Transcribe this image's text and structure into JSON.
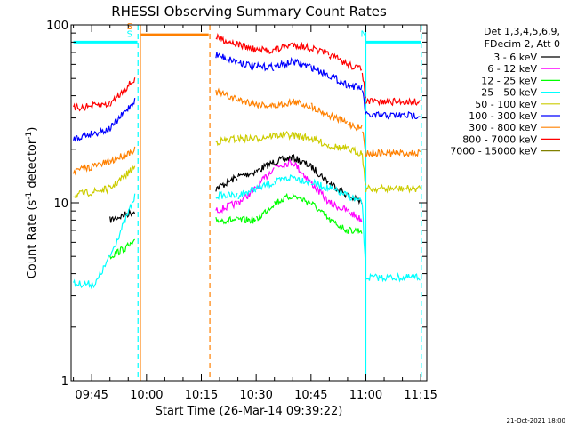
{
  "chart_data": {
    "type": "line",
    "title": "RHESSI Observing Summary Count Rates",
    "xlabel": "Start Time (26-Mar-14 09:39:22)",
    "ylabel_main": "Count Rate (s",
    "ylabel_sup1": "-1",
    "ylabel_mid": " detector",
    "ylabel_sup2": "-1",
    "ylabel_end": ")",
    "yscale": "log",
    "ylim": [
      1,
      100
    ],
    "y_ticks": [
      {
        "label": "1",
        "value": 1
      },
      {
        "label": "10",
        "value": 10
      },
      {
        "label": "100",
        "value": 100
      }
    ],
    "x_range_min": [
      9.656,
      11.278
    ],
    "x_ticks": [
      {
        "label": "09:45",
        "t": "09:45"
      },
      {
        "label": "10:00",
        "t": "10:00"
      },
      {
        "label": "10:15",
        "t": "10:15"
      },
      {
        "label": "10:30",
        "t": "10:30"
      },
      {
        "label": "10:45",
        "t": "10:45"
      },
      {
        "label": "11:00",
        "t": "11:00"
      },
      {
        "label": "11:15",
        "t": "11:15"
      }
    ],
    "legend_header": [
      "Det 1,3,4,5,6,9,",
      "FDecim 2, Att 0"
    ],
    "legend_position": "right",
    "series": [
      {
        "name": "3 - 6 keV",
        "color": "#000000",
        "points": [
          [
            "09:50",
            8
          ],
          [
            "09:57",
            9
          ],
          [
            "10:19",
            12
          ],
          [
            "10:25",
            14
          ],
          [
            "10:30",
            15
          ],
          [
            "10:35",
            17
          ],
          [
            "10:40",
            18
          ],
          [
            "10:45",
            16
          ],
          [
            "10:50",
            13
          ],
          [
            "10:55",
            11
          ],
          [
            "10:59",
            10
          ]
        ]
      },
      {
        "name": "6 - 12 keV",
        "color": "#ff00ff",
        "points": [
          [
            "10:19",
            9
          ],
          [
            "10:25",
            10
          ],
          [
            "10:30",
            12
          ],
          [
            "10:35",
            16
          ],
          [
            "10:40",
            17
          ],
          [
            "10:45",
            13
          ],
          [
            "10:50",
            10
          ],
          [
            "10:55",
            9
          ],
          [
            "10:59",
            8
          ]
        ]
      },
      {
        "name": "12 - 25 keV",
        "color": "#00ff00",
        "points": [
          [
            "09:50",
            5
          ],
          [
            "09:57",
            6
          ],
          [
            "10:19",
            8
          ],
          [
            "10:25",
            8
          ],
          [
            "10:30",
            8
          ],
          [
            "10:35",
            10
          ],
          [
            "10:40",
            11
          ],
          [
            "10:45",
            10
          ],
          [
            "10:50",
            8
          ],
          [
            "10:55",
            7
          ],
          [
            "10:59",
            7
          ]
        ]
      },
      {
        "name": "25 - 50 keV",
        "color": "#00ffff",
        "points": [
          [
            "09:40",
            3.5
          ],
          [
            "09:46",
            3.5
          ],
          [
            "09:50",
            5
          ],
          [
            "09:57",
            11
          ],
          [
            "10:19",
            11
          ],
          [
            "10:25",
            11
          ],
          [
            "10:30",
            12
          ],
          [
            "10:35",
            13
          ],
          [
            "10:40",
            14
          ],
          [
            "10:45",
            13
          ],
          [
            "10:50",
            12
          ],
          [
            "10:55",
            11
          ],
          [
            "10:59",
            10
          ],
          [
            "11:00",
            3.8
          ],
          [
            "11:15",
            3.8
          ]
        ]
      },
      {
        "name": "50 - 100 keV",
        "color": "#cccc00",
        "points": [
          [
            "09:40",
            11
          ],
          [
            "09:50",
            12
          ],
          [
            "09:57",
            16
          ],
          [
            "10:19",
            22
          ],
          [
            "10:25",
            23
          ],
          [
            "10:30",
            23
          ],
          [
            "10:35",
            24
          ],
          [
            "10:40",
            24
          ],
          [
            "10:45",
            23
          ],
          [
            "10:50",
            21
          ],
          [
            "10:55",
            20
          ],
          [
            "10:59",
            19
          ],
          [
            "11:00",
            12
          ],
          [
            "11:15",
            12
          ]
        ]
      },
      {
        "name": "100 - 300 keV",
        "color": "#0000ff",
        "points": [
          [
            "09:40",
            23
          ],
          [
            "09:50",
            26
          ],
          [
            "09:57",
            38
          ],
          [
            "10:19",
            68
          ],
          [
            "10:25",
            62
          ],
          [
            "10:30",
            58
          ],
          [
            "10:35",
            58
          ],
          [
            "10:40",
            62
          ],
          [
            "10:45",
            58
          ],
          [
            "10:50",
            52
          ],
          [
            "10:55",
            46
          ],
          [
            "10:59",
            44
          ],
          [
            "11:00",
            31
          ],
          [
            "11:15",
            31
          ]
        ]
      },
      {
        "name": "300 - 800 keV",
        "color": "#ff8000",
        "points": [
          [
            "09:40",
            15
          ],
          [
            "09:50",
            17
          ],
          [
            "09:57",
            20
          ],
          [
            "10:19",
            42
          ],
          [
            "10:25",
            38
          ],
          [
            "10:30",
            36
          ],
          [
            "10:35",
            35
          ],
          [
            "10:40",
            37
          ],
          [
            "10:45",
            35
          ],
          [
            "10:50",
            31
          ],
          [
            "10:55",
            28
          ],
          [
            "10:59",
            26
          ],
          [
            "11:00",
            19
          ],
          [
            "11:15",
            19
          ]
        ]
      },
      {
        "name": "800 - 7000 keV",
        "color": "#ff0000",
        "points": [
          [
            "09:40",
            34
          ],
          [
            "09:50",
            36
          ],
          [
            "09:57",
            50
          ],
          [
            "10:19",
            85
          ],
          [
            "10:25",
            78
          ],
          [
            "10:30",
            72
          ],
          [
            "10:35",
            72
          ],
          [
            "10:40",
            78
          ],
          [
            "10:45",
            74
          ],
          [
            "10:50",
            68
          ],
          [
            "10:55",
            60
          ],
          [
            "10:59",
            56
          ],
          [
            "11:00",
            37
          ],
          [
            "11:15",
            37
          ]
        ]
      },
      {
        "name": "7000 - 15000 keV",
        "color": "#808000",
        "points": []
      }
    ],
    "flag_bars": [
      {
        "label": "S",
        "color": "#00ffff",
        "start": "09:40",
        "end": "09:57:30",
        "value": 80
      },
      {
        "label": "S",
        "color": "#ff8000",
        "start": "09:58:30",
        "end": "10:17",
        "value": 88
      },
      {
        "label": "N",
        "color": "#00ffff",
        "start": "11:00",
        "end": "11:15",
        "value": 80
      }
    ],
    "vertical_markers": [
      {
        "color": "#00ffff",
        "style": "dashed",
        "t": "09:57:40"
      },
      {
        "color": "#ff8000",
        "style": "solid",
        "t": "09:58:20"
      },
      {
        "color": "#ff8000",
        "style": "dashed",
        "t": "10:17:20"
      },
      {
        "color": "#00ffff",
        "style": "solid",
        "t": "11:00"
      },
      {
        "color": "#00ffff",
        "style": "dashed",
        "t": "11:15:10"
      }
    ]
  },
  "footer_timestamp": "21-Oct-2021 18:00"
}
